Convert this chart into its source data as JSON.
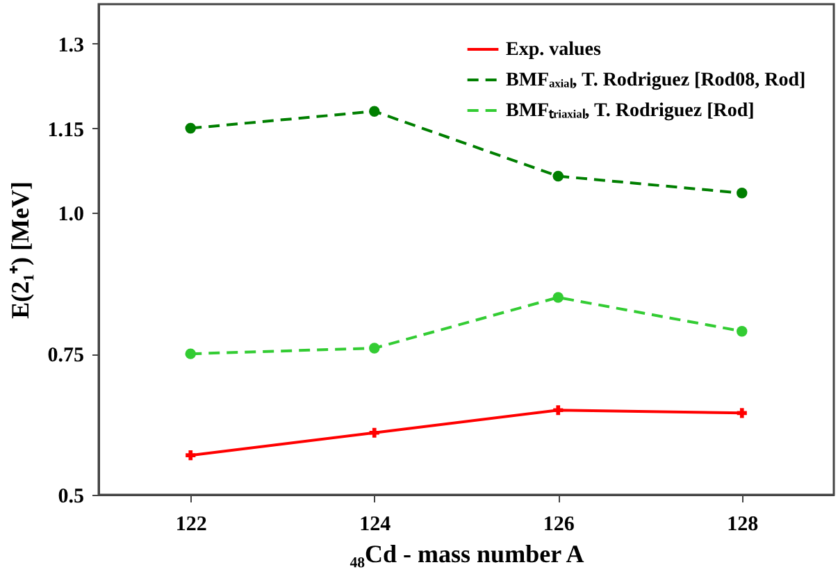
{
  "chart_data": {
    "type": "line",
    "xlabel": "₄₈Cd - mass number A",
    "ylabel": "E(2₁⁺) [MeV]",
    "x": [
      122,
      124,
      126,
      128
    ],
    "xlim": [
      121,
      129
    ],
    "xticks": [
      122,
      124,
      126,
      128
    ],
    "ylim": [
      0.5,
      1.37
    ],
    "yticks": [
      0.5,
      0.75,
      {
        "value": 1.0,
        "label": "1.0"
      },
      1.15,
      1.3
    ],
    "grid": false,
    "legend": "top right",
    "series": [
      {
        "name": "Exp. values",
        "color": "#ff0000",
        "values": [
          0.57,
          0.61,
          0.65,
          0.645
        ],
        "marker": "cross",
        "line_style": "solid"
      },
      {
        "name": "BMFₐₓᵢₐₗ, T. Rodriguez [Rod08, Rod]",
        "color": "#007f00",
        "values": [
          1.15,
          1.18,
          1.065,
          1.035
        ],
        "marker": "circle",
        "line_style": "dashed"
      },
      {
        "name": "BMFₜᵣᵢₐₓᵢₐₗ, T. Rodriguez [Rod]",
        "color": "#33cc33",
        "values": [
          0.75,
          0.76,
          0.85,
          0.79
        ],
        "marker": "circle",
        "line_style": "dashed"
      }
    ]
  }
}
